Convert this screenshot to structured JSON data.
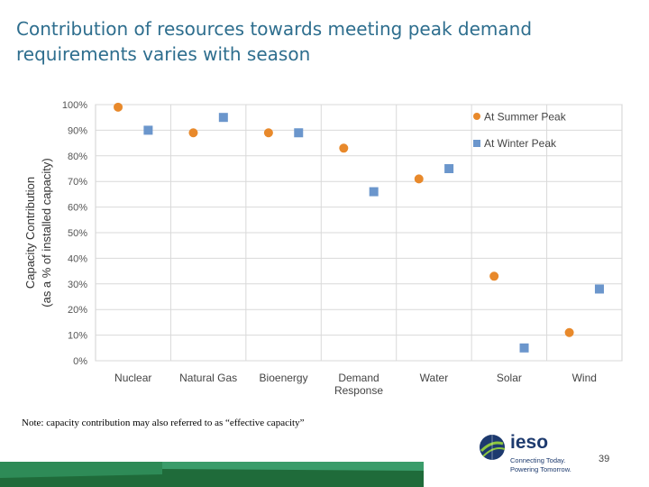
{
  "title": "Contribution of resources towards meeting peak demand requirements varies with season",
  "note": "Note: capacity contribution may also referred to as “effective capacity”",
  "page_number": "39",
  "logo": {
    "name": "ieso",
    "tagline1": "Connecting Today.",
    "tagline2": "Powering Tomorrow."
  },
  "colors": {
    "summer": "#e8892b",
    "winter": "#6b96cc",
    "title": "#2e6e8e"
  },
  "chart_data": {
    "type": "scatter",
    "ylabel_line1": "Capacity Contribution",
    "ylabel_line2": "(as a % of installed capacity)",
    "ylim": [
      0,
      100
    ],
    "yticks": [
      0,
      10,
      20,
      30,
      40,
      50,
      60,
      70,
      80,
      90,
      100
    ],
    "ytick_labels": [
      "0%",
      "10%",
      "20%",
      "30%",
      "40%",
      "50%",
      "60%",
      "70%",
      "80%",
      "90%",
      "100%"
    ],
    "categories": [
      {
        "lines": [
          "Nuclear"
        ]
      },
      {
        "lines": [
          "Natural Gas"
        ]
      },
      {
        "lines": [
          "Bioenergy"
        ]
      },
      {
        "lines": [
          "Demand",
          "Response"
        ]
      },
      {
        "lines": [
          "Water"
        ]
      },
      {
        "lines": [
          "Solar"
        ]
      },
      {
        "lines": [
          "Wind"
        ]
      }
    ],
    "legend_position": "top-right",
    "series": [
      {
        "name": "At Summer Peak",
        "marker": "circle",
        "values": [
          99,
          89,
          89,
          83,
          71,
          33,
          11
        ]
      },
      {
        "name": "At Winter Peak",
        "marker": "square",
        "values": [
          90,
          95,
          89,
          66,
          75,
          5,
          28
        ]
      }
    ]
  }
}
